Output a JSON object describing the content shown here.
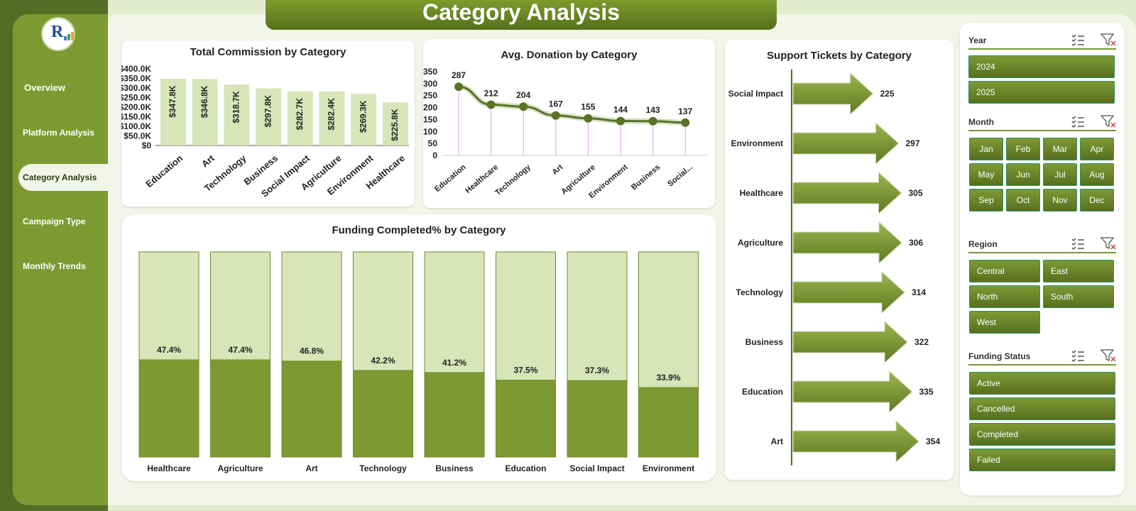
{
  "title": "Category Analysis",
  "nav": [
    "Overview",
    "Platform Analysis",
    "Category Analysis",
    "Campaign Type",
    "Monthly Trends"
  ],
  "slicers": {
    "year": {
      "title": "Year",
      "items": [
        "2024",
        "2025"
      ]
    },
    "month": {
      "title": "Month",
      "items": [
        "Jan",
        "Feb",
        "Mar",
        "Apr",
        "May",
        "Jun",
        "Jul",
        "Aug",
        "Sep",
        "Oct",
        "Nov",
        "Dec"
      ]
    },
    "region": {
      "title": "Region",
      "items": [
        "Central",
        "East",
        "North",
        "South",
        "West"
      ]
    },
    "status": {
      "title": "Funding Status",
      "items": [
        "Active",
        "Cancelled",
        "Completed",
        "Failed"
      ]
    }
  },
  "colors": {
    "accent": "#7d9a32",
    "dark": "#536d24",
    "light_bar": "#d8e5b8",
    "line": "#5a7325"
  },
  "chart_data": [
    {
      "type": "bar",
      "title": "Total Commission by Category",
      "categories": [
        "Education",
        "Art",
        "Technology",
        "Business",
        "Social Impact",
        "Agriculture",
        "Environment",
        "Healthcare"
      ],
      "values": [
        347.8,
        346.8,
        318.7,
        297.8,
        282.7,
        282.4,
        269.3,
        225.8
      ],
      "labels": [
        "$347.8K",
        "$346.8K",
        "$318.7K",
        "$297.8K",
        "$282.7K",
        "$282.4K",
        "$269.3K",
        "$225.8K"
      ],
      "ylim": [
        0,
        400
      ],
      "yticks": [
        "$0",
        "$50.0K",
        "$100.0K",
        "$150.0K",
        "$200.0K",
        "$250.0K",
        "$300.0K",
        "$350.0K",
        "$400.0K"
      ]
    },
    {
      "type": "line",
      "title": "Avg. Donation by Category",
      "categories": [
        "Education",
        "Healthcare",
        "Technology",
        "Art",
        "Agriculture",
        "Environment",
        "Business",
        "Social..."
      ],
      "values": [
        287,
        212,
        204,
        167,
        155,
        144,
        143,
        137
      ],
      "ylim": [
        0,
        350
      ],
      "yticks": [
        "0",
        "50",
        "100",
        "150",
        "200",
        "250",
        "300",
        "350"
      ]
    },
    {
      "type": "bar",
      "title": "Support Tickets by Category",
      "categories": [
        "Social Impact",
        "Environment",
        "Healthcare",
        "Agriculture",
        "Technology",
        "Business",
        "Education",
        "Art"
      ],
      "values": [
        225,
        297,
        305,
        306,
        314,
        322,
        335,
        354
      ]
    },
    {
      "type": "bar",
      "title": "Funding Completed% by Category",
      "categories": [
        "Healthcare",
        "Agriculture",
        "Art",
        "Technology",
        "Business",
        "Education",
        "Social Impact",
        "Environment"
      ],
      "values": [
        47.4,
        47.4,
        46.8,
        42.2,
        41.2,
        37.5,
        37.3,
        33.9
      ],
      "labels": [
        "47.4%",
        "47.4%",
        "46.8%",
        "42.2%",
        "41.2%",
        "37.5%",
        "37.3%",
        "33.9%"
      ],
      "ylim": [
        0,
        100
      ]
    }
  ]
}
